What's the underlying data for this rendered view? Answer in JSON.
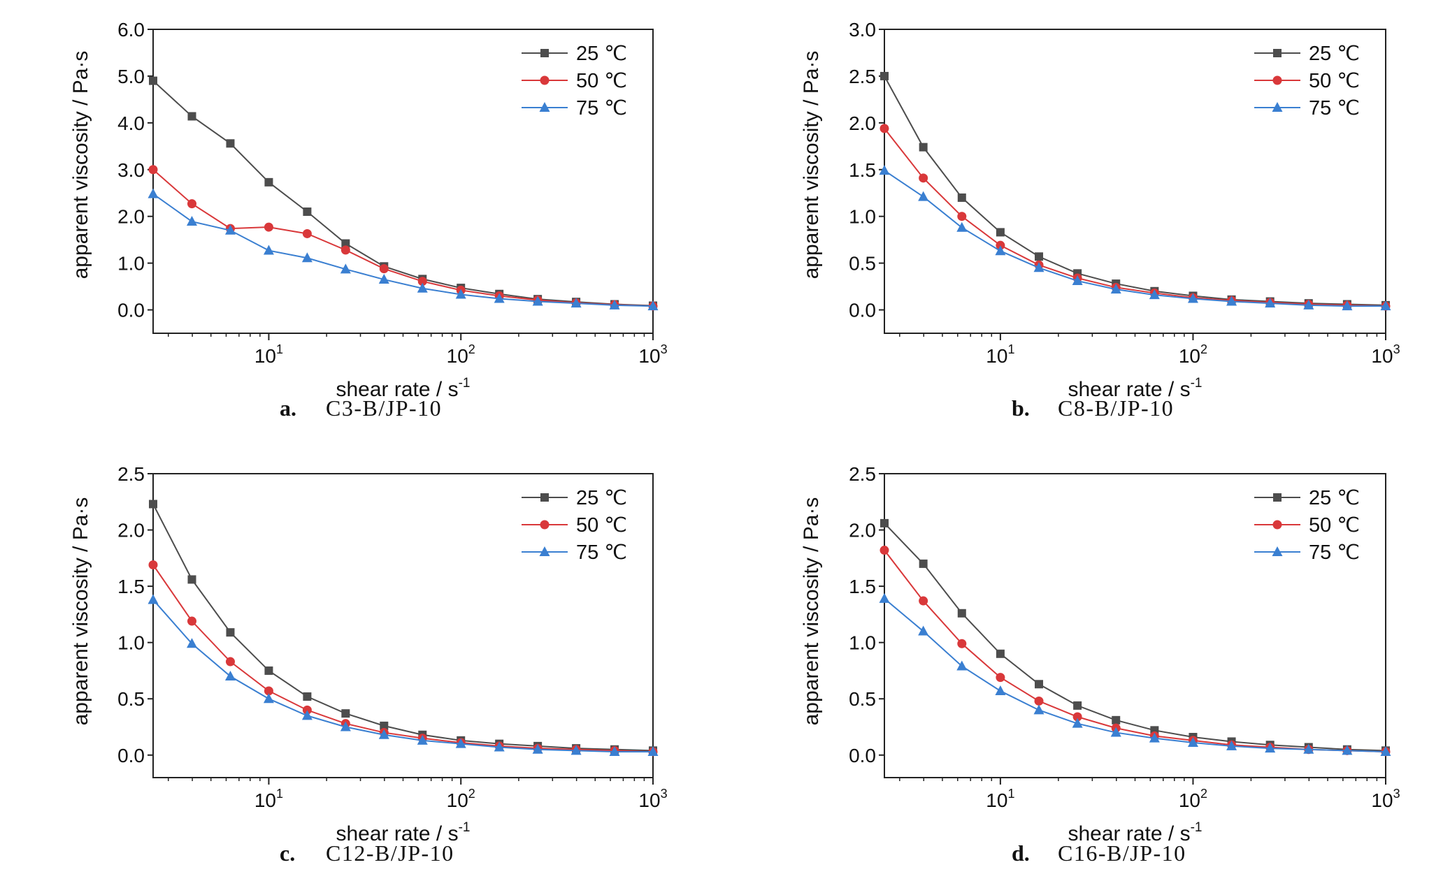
{
  "chart_data": [
    {
      "type": "line",
      "caption_letter": "a.",
      "caption_text": "C3-B/JP-10",
      "xlabel_base": "shear rate / s",
      "xlabel_exp": "-1",
      "ylabel": "apparent viscosity / Pa·s",
      "x_scale": "log",
      "xlim": [
        2.5,
        1000
      ],
      "xticks": [
        {
          "base": "10",
          "exp": "1",
          "value": 10
        },
        {
          "base": "10",
          "exp": "2",
          "value": 100
        },
        {
          "base": "10",
          "exp": "3",
          "value": 1000
        }
      ],
      "ylim": [
        -0.5,
        6.0
      ],
      "yticks": [
        "0.0",
        "1.0",
        "2.0",
        "3.0",
        "4.0",
        "5.0",
        "6.0"
      ],
      "legend_position": "top-right",
      "x": [
        2.5,
        3.98,
        6.31,
        10,
        15.85,
        25.12,
        39.81,
        63.1,
        100,
        158.5,
        251.2,
        398.1,
        631,
        1000
      ],
      "series": [
        {
          "name": "25 ℃",
          "color": "#4d4d4d",
          "marker": "square",
          "values": [
            4.9,
            4.14,
            3.56,
            2.73,
            2.1,
            1.42,
            0.93,
            0.66,
            0.47,
            0.34,
            0.23,
            0.17,
            0.12,
            0.09
          ]
        },
        {
          "name": "50 ℃",
          "color": "#d9383a",
          "marker": "circle",
          "values": [
            3.0,
            2.27,
            1.74,
            1.77,
            1.63,
            1.28,
            0.88,
            0.61,
            0.42,
            0.3,
            0.21,
            0.15,
            0.11,
            0.08
          ]
        },
        {
          "name": "75 ℃",
          "color": "#3a7fd1",
          "marker": "triangle",
          "values": [
            2.48,
            1.89,
            1.7,
            1.27,
            1.11,
            0.87,
            0.65,
            0.46,
            0.33,
            0.24,
            0.18,
            0.14,
            0.1,
            0.08
          ]
        }
      ]
    },
    {
      "type": "line",
      "caption_letter": "b.",
      "caption_text": "C8-B/JP-10",
      "xlabel_base": "shear rate / s",
      "xlabel_exp": "-1",
      "ylabel": "apparent viscosity / Pa·s",
      "x_scale": "log",
      "xlim": [
        2.5,
        1000
      ],
      "xticks": [
        {
          "base": "10",
          "exp": "1",
          "value": 10
        },
        {
          "base": "10",
          "exp": "2",
          "value": 100
        },
        {
          "base": "10",
          "exp": "3",
          "value": 1000
        }
      ],
      "ylim": [
        -0.25,
        3.0
      ],
      "yticks": [
        "0.0",
        "0.5",
        "1.0",
        "1.5",
        "2.0",
        "2.5",
        "3.0"
      ],
      "legend_position": "top-right",
      "x": [
        2.5,
        3.98,
        6.31,
        10,
        15.85,
        25.12,
        39.81,
        63.1,
        100,
        158.5,
        251.2,
        398.1,
        631,
        1000
      ],
      "series": [
        {
          "name": "25 ℃",
          "color": "#4d4d4d",
          "marker": "square",
          "values": [
            2.5,
            1.74,
            1.2,
            0.83,
            0.57,
            0.39,
            0.28,
            0.2,
            0.15,
            0.11,
            0.09,
            0.07,
            0.06,
            0.05
          ]
        },
        {
          "name": "50 ℃",
          "color": "#d9383a",
          "marker": "circle",
          "values": [
            1.94,
            1.41,
            1.0,
            0.69,
            0.48,
            0.34,
            0.24,
            0.18,
            0.13,
            0.1,
            0.08,
            0.06,
            0.05,
            0.04
          ]
        },
        {
          "name": "75 ℃",
          "color": "#3a7fd1",
          "marker": "triangle",
          "values": [
            1.49,
            1.21,
            0.88,
            0.63,
            0.45,
            0.31,
            0.22,
            0.16,
            0.12,
            0.09,
            0.07,
            0.05,
            0.04,
            0.04
          ]
        }
      ]
    },
    {
      "type": "line",
      "caption_letter": "c.",
      "caption_text": "C12-B/JP-10",
      "xlabel_base": "shear rate / s",
      "xlabel_exp": "-1",
      "ylabel": "apparent viscosity / Pa·s",
      "x_scale": "log",
      "xlim": [
        2.5,
        1000
      ],
      "xticks": [
        {
          "base": "10",
          "exp": "1",
          "value": 10
        },
        {
          "base": "10",
          "exp": "2",
          "value": 100
        },
        {
          "base": "10",
          "exp": "3",
          "value": 1000
        }
      ],
      "ylim": [
        -0.2,
        2.5
      ],
      "yticks": [
        "0.0",
        "0.5",
        "1.0",
        "1.5",
        "2.0",
        "2.5"
      ],
      "legend_position": "top-right",
      "x": [
        2.5,
        3.98,
        6.31,
        10,
        15.85,
        25.12,
        39.81,
        63.1,
        100,
        158.5,
        251.2,
        398.1,
        631,
        1000
      ],
      "series": [
        {
          "name": "25 ℃",
          "color": "#4d4d4d",
          "marker": "square",
          "values": [
            2.23,
            1.56,
            1.09,
            0.75,
            0.52,
            0.37,
            0.26,
            0.18,
            0.13,
            0.1,
            0.08,
            0.06,
            0.05,
            0.04
          ]
        },
        {
          "name": "50 ℃",
          "color": "#d9383a",
          "marker": "circle",
          "values": [
            1.69,
            1.19,
            0.83,
            0.57,
            0.4,
            0.28,
            0.2,
            0.15,
            0.11,
            0.08,
            0.06,
            0.05,
            0.04,
            0.03
          ]
        },
        {
          "name": "75 ℃",
          "color": "#3a7fd1",
          "marker": "triangle",
          "values": [
            1.38,
            0.99,
            0.7,
            0.5,
            0.35,
            0.25,
            0.18,
            0.13,
            0.1,
            0.07,
            0.05,
            0.04,
            0.03,
            0.03
          ]
        }
      ]
    },
    {
      "type": "line",
      "caption_letter": "d.",
      "caption_text": "C16-B/JP-10",
      "xlabel_base": "shear rate / s",
      "xlabel_exp": "-1",
      "ylabel": "apparent viscosity / Pa·s",
      "x_scale": "log",
      "xlim": [
        2.5,
        1000
      ],
      "xticks": [
        {
          "base": "10",
          "exp": "1",
          "value": 10
        },
        {
          "base": "10",
          "exp": "2",
          "value": 100
        },
        {
          "base": "10",
          "exp": "3",
          "value": 1000
        }
      ],
      "ylim": [
        -0.2,
        2.5
      ],
      "yticks": [
        "0.0",
        "0.5",
        "1.0",
        "1.5",
        "2.0",
        "2.5"
      ],
      "legend_position": "top-right",
      "x": [
        2.5,
        3.98,
        6.31,
        10,
        15.85,
        25.12,
        39.81,
        63.1,
        100,
        158.5,
        251.2,
        398.1,
        631,
        1000
      ],
      "series": [
        {
          "name": "25 ℃",
          "color": "#4d4d4d",
          "marker": "square",
          "values": [
            2.06,
            1.7,
            1.26,
            0.9,
            0.63,
            0.44,
            0.31,
            0.22,
            0.16,
            0.12,
            0.09,
            0.07,
            0.05,
            0.04
          ]
        },
        {
          "name": "50 ℃",
          "color": "#d9383a",
          "marker": "circle",
          "values": [
            1.82,
            1.37,
            0.99,
            0.69,
            0.48,
            0.34,
            0.24,
            0.17,
            0.13,
            0.09,
            0.07,
            0.05,
            0.04,
            0.03
          ]
        },
        {
          "name": "75 ℃",
          "color": "#3a7fd1",
          "marker": "triangle",
          "values": [
            1.39,
            1.1,
            0.79,
            0.57,
            0.4,
            0.28,
            0.2,
            0.15,
            0.11,
            0.08,
            0.06,
            0.05,
            0.04,
            0.03
          ]
        }
      ]
    }
  ]
}
